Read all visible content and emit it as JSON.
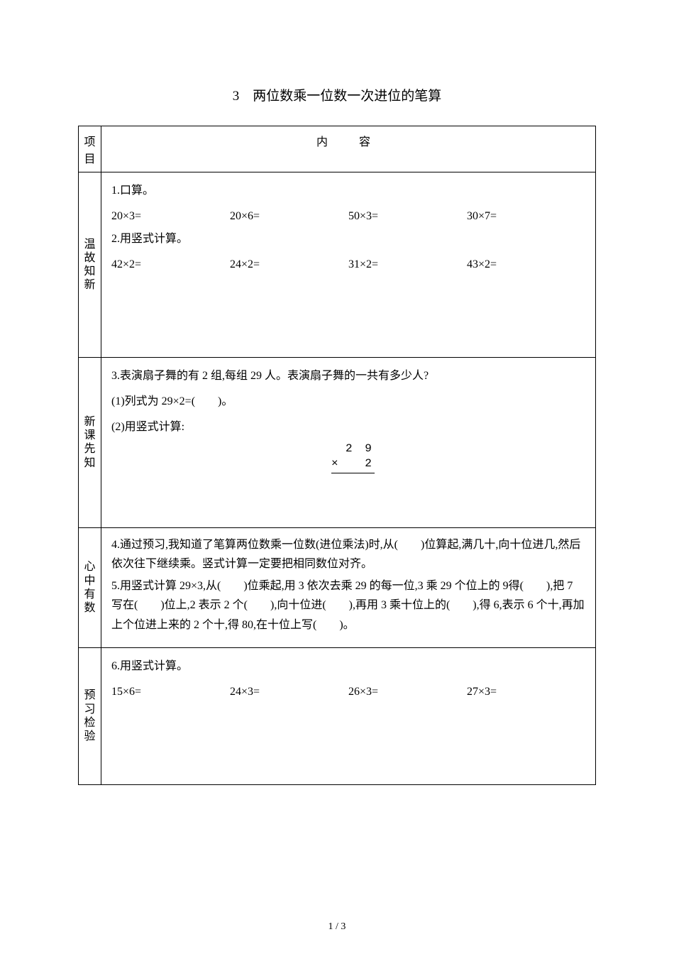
{
  "title": "3　两位数乘一位数一次进位的笔算",
  "header": {
    "col1": "项目",
    "col2": "内　容"
  },
  "sections": {
    "s1": {
      "label": "温故知新",
      "p1": "1.口算。",
      "row1": {
        "a": "20×3=",
        "b": "20×6=",
        "c": "50×3=",
        "d": "30×7="
      },
      "p2": "2.用竖式计算。",
      "row2": {
        "a": "42×2=",
        "b": "24×2=",
        "c": "31×2=",
        "d": "43×2="
      }
    },
    "s2": {
      "label": "新课先知",
      "p1": "3.表演扇子舞的有 2 组,每组 29 人。表演扇子舞的一共有多少人?",
      "p2": "(1)列式为 29×2=(　　)。",
      "p3": "(2)用竖式计算:",
      "calc_line1": "2 9",
      "calc_line2": "×　 2"
    },
    "s3": {
      "label": "心中有数",
      "p1": "4.通过预习,我知道了笔算两位数乘一位数(进位乘法)时,从(　　)位算起,满几十,向十位进几,然后依次往下继续乘。竖式计算一定要把相同数位对齐。",
      "p2": "5.用竖式计算 29×3,从(　　)位乘起,用 3 依次去乘 29 的每一位,3 乘 29 个位上的 9得(　　),把 7 写在(　　)位上,2 表示 2 个(　　),向十位进(　　),再用 3 乘十位上的(　　),得 6,表示 6 个十,再加上个位进上来的 2 个十,得 80,在十位上写(　　)。"
    },
    "s4": {
      "label": "预习检验",
      "p1": "6.用竖式计算。",
      "row1": {
        "a": "15×6=",
        "b": "24×3=",
        "c": "26×3=",
        "d": "27×3="
      }
    }
  },
  "page_number": "1 / 3",
  "colors": {
    "text": "#000000",
    "bg": "#ffffff",
    "border": "#000000"
  },
  "fonts": {
    "body_size": 16,
    "title_size": 19
  }
}
